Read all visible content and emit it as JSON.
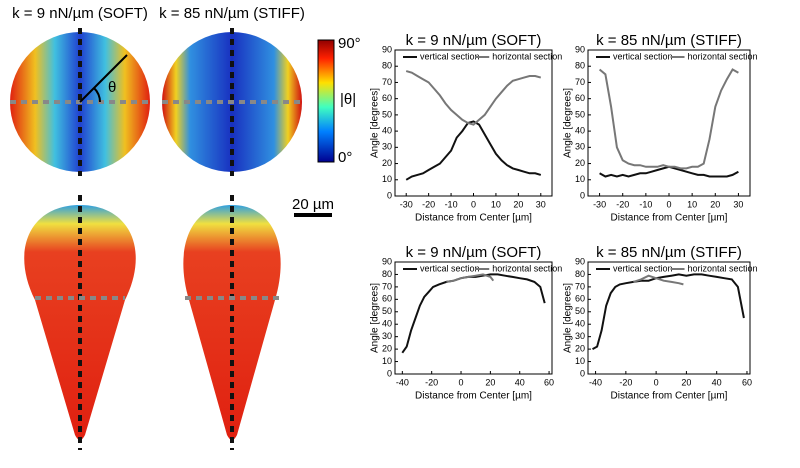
{
  "figure": {
    "labels": [
      "k = 9 nN/µm (SOFT)",
      "k = 85 nN/µm (STIFF)"
    ],
    "colorbar": {
      "max": "90°",
      "min": "0°",
      "label": "|θ|"
    },
    "angle_symbol": "θ",
    "scale_bar": "20 µm"
  },
  "chart_data": [
    {
      "type": "line",
      "title": "k = 9 nN/µm (SOFT)",
      "xlabel": "Distance from Center [µm]",
      "ylabel": "Angle [degrees]",
      "xlim": [
        -35,
        35
      ],
      "ylim": [
        0,
        90
      ],
      "xticks": [
        -30,
        -20,
        -10,
        0,
        10,
        20,
        30
      ],
      "yticks": [
        0,
        10,
        20,
        30,
        40,
        50,
        60,
        70,
        80,
        90
      ],
      "legend": "top",
      "series": [
        {
          "name": "vertical section",
          "color": "#111111",
          "x": [
            -30,
            -27.5,
            -25,
            -22.5,
            -20,
            -17.5,
            -15,
            -12.5,
            -10,
            -7.5,
            -5,
            -2.5,
            0,
            2.5,
            5,
            7.5,
            10,
            12.5,
            15,
            17.5,
            20,
            22.5,
            25,
            27.5,
            30
          ],
          "values": [
            10,
            12,
            13,
            14,
            16,
            18,
            20,
            24,
            28,
            36,
            40,
            45,
            46,
            44,
            38,
            32,
            26,
            22,
            19,
            17,
            16,
            15,
            14,
            14,
            13
          ]
        },
        {
          "name": "horizontal section",
          "color": "#777777",
          "x": [
            -30,
            -27.5,
            -25,
            -22.5,
            -20,
            -17.5,
            -15,
            -12.5,
            -10,
            -7.5,
            -5,
            -2.5,
            0,
            2.5,
            5,
            7.5,
            10,
            12.5,
            15,
            17.5,
            20,
            22.5,
            25,
            27.5,
            30
          ],
          "values": [
            77,
            76,
            74,
            72,
            70,
            66,
            62,
            57,
            53,
            50,
            47,
            45,
            44,
            47,
            50,
            55,
            60,
            64,
            68,
            71,
            72,
            73,
            74,
            74,
            73
          ]
        }
      ]
    },
    {
      "type": "line",
      "title": "k = 85 nN/µm (STIFF)",
      "xlabel": "Distance from Center [µm]",
      "ylabel": "Angle [degrees]",
      "xlim": [
        -35,
        35
      ],
      "ylim": [
        0,
        90
      ],
      "xticks": [
        -30,
        -20,
        -10,
        0,
        10,
        20,
        30
      ],
      "yticks": [
        0,
        10,
        20,
        30,
        40,
        50,
        60,
        70,
        80,
        90
      ],
      "legend": "top",
      "series": [
        {
          "name": "vertical section",
          "color": "#111111",
          "x": [
            -30,
            -27.5,
            -25,
            -22.5,
            -20,
            -17.5,
            -15,
            -12.5,
            -10,
            -7.5,
            -5,
            -2.5,
            0,
            2.5,
            5,
            7.5,
            10,
            12.5,
            15,
            17.5,
            20,
            22.5,
            25,
            27.5,
            30
          ],
          "values": [
            14,
            12,
            13,
            12,
            13,
            12,
            13,
            14,
            14,
            15,
            16,
            17,
            18,
            17,
            16,
            15,
            14,
            13,
            13,
            12,
            12,
            12,
            12,
            13,
            15
          ]
        },
        {
          "name": "horizontal section",
          "color": "#777777",
          "x": [
            -30,
            -27.5,
            -25,
            -22.5,
            -20,
            -17.5,
            -15,
            -12.5,
            -10,
            -7.5,
            -5,
            -2.5,
            0,
            2.5,
            5,
            7.5,
            10,
            12.5,
            15,
            17.5,
            20,
            22.5,
            25,
            27.5,
            30
          ],
          "values": [
            78,
            75,
            55,
            30,
            22,
            20,
            19,
            19,
            18,
            18,
            18,
            19,
            18,
            18,
            17,
            17,
            18,
            18,
            20,
            35,
            55,
            65,
            72,
            78,
            76
          ]
        }
      ]
    },
    {
      "type": "line",
      "title": "k = 9 nN/µm (SOFT)",
      "xlabel": "Distance from Center [µm]",
      "ylabel": "Angle [degrees]",
      "xlim": [
        -45,
        62
      ],
      "ylim": [
        0,
        90
      ],
      "xticks": [
        -40,
        -20,
        0,
        20,
        40,
        60
      ],
      "yticks": [
        0,
        10,
        20,
        30,
        40,
        50,
        60,
        70,
        80,
        90
      ],
      "legend": "top",
      "series": [
        {
          "name": "vertical section",
          "color": "#111111",
          "x": [
            -40,
            -37,
            -34,
            -31,
            -28,
            -25,
            -22,
            -19,
            -15,
            -10,
            -5,
            0,
            5,
            10,
            15,
            20,
            25,
            30,
            35,
            40,
            45,
            50,
            54,
            57
          ],
          "values": [
            17,
            22,
            35,
            45,
            55,
            62,
            66,
            70,
            72,
            74,
            75,
            77,
            78,
            78,
            79,
            80,
            80,
            79,
            78,
            77,
            76,
            74,
            70,
            57
          ]
        },
        {
          "name": "horizontal section",
          "color": "#777777",
          "x": [
            -10,
            -5,
            0,
            5,
            10,
            15,
            20,
            22
          ],
          "values": [
            74,
            75,
            77,
            78,
            79,
            80,
            78,
            75
          ]
        }
      ]
    },
    {
      "type": "line",
      "title": "k = 85 nN/µm (STIFF)",
      "xlabel": "Distance from Center [µm]",
      "ylabel": "Angle [degrees]",
      "xlim": [
        -45,
        62
      ],
      "ylim": [
        0,
        90
      ],
      "xticks": [
        -40,
        -20,
        0,
        20,
        40,
        60
      ],
      "yticks": [
        0,
        10,
        20,
        30,
        40,
        50,
        60,
        70,
        80,
        90
      ],
      "legend": "top",
      "series": [
        {
          "name": "vertical section",
          "color": "#111111",
          "x": [
            -42,
            -39,
            -36,
            -33,
            -30,
            -27,
            -24,
            -20,
            -15,
            -10,
            -5,
            0,
            5,
            10,
            15,
            20,
            25,
            30,
            35,
            40,
            45,
            50,
            54,
            58
          ],
          "values": [
            20,
            22,
            35,
            55,
            65,
            70,
            72,
            73,
            74,
            75,
            75,
            77,
            78,
            79,
            80,
            79,
            80,
            80,
            79,
            78,
            77,
            76,
            70,
            45
          ]
        },
        {
          "name": "horizontal section",
          "color": "#777777",
          "x": [
            -15,
            -10,
            -5,
            0,
            5,
            10,
            15,
            18
          ],
          "values": [
            74,
            76,
            79,
            77,
            75,
            74,
            73,
            72
          ]
        }
      ]
    }
  ]
}
